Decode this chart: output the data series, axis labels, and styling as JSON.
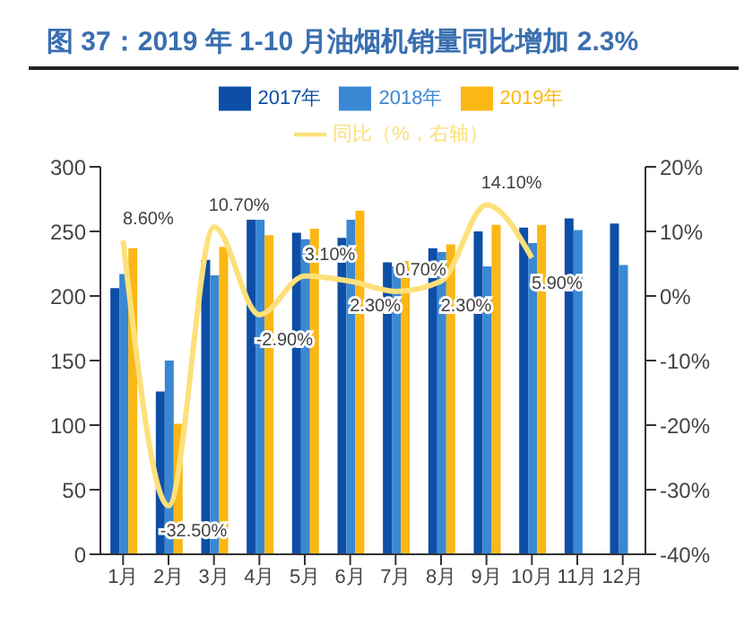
{
  "chart_data": {
    "type": "bar",
    "title": "图 37：2019 年 1-10 月油烟机销量同比增加 2.3%",
    "categories": [
      "1月",
      "2月",
      "3月",
      "4月",
      "5月",
      "6月",
      "7月",
      "8月",
      "9月",
      "10月",
      "11月",
      "12月"
    ],
    "series": [
      {
        "name": "2017年",
        "color": "#0d4ea6",
        "values": [
          206,
          126,
          228,
          259,
          249,
          245,
          226,
          237,
          250,
          253,
          260,
          256
        ]
      },
      {
        "name": "2018年",
        "color": "#3a88d4",
        "values": [
          217,
          150,
          216,
          259,
          244,
          259,
          223,
          234,
          223,
          241,
          251,
          224
        ]
      },
      {
        "name": "2019年",
        "color": "#fbb714",
        "values": [
          237,
          101,
          238,
          247,
          252,
          266,
          227,
          240,
          255,
          255,
          null,
          null
        ]
      },
      {
        "name": "同比（%，右轴）",
        "type": "line",
        "axis": "y2",
        "color": "#fde07a",
        "values": [
          8.6,
          -32.5,
          10.7,
          -2.9,
          3.1,
          2.3,
          0.7,
          2.3,
          14.1,
          5.9,
          null,
          null
        ],
        "value_labels": [
          "8.60%",
          "-32.50%",
          "10.70%",
          "-2.90%",
          "3.10%",
          "2.30%",
          "0.70%",
          "2.30%",
          "14.10%",
          "5.90%",
          null,
          null
        ]
      }
    ],
    "ylim": [
      0,
      300
    ],
    "yticks": [
      0,
      50,
      100,
      150,
      200,
      250,
      300
    ],
    "y2lim": [
      -40,
      20
    ],
    "y2ticks": [
      {
        "value": -40,
        "label": "-40%"
      },
      {
        "value": -30,
        "label": "-30%"
      },
      {
        "value": -20,
        "label": "-20%"
      },
      {
        "value": -10,
        "label": "-10%"
      },
      {
        "value": 0,
        "label": "0%"
      },
      {
        "value": 10,
        "label": "10%"
      },
      {
        "value": 20,
        "label": "20%"
      }
    ],
    "grid": false,
    "legend": "top",
    "marker": "none"
  }
}
